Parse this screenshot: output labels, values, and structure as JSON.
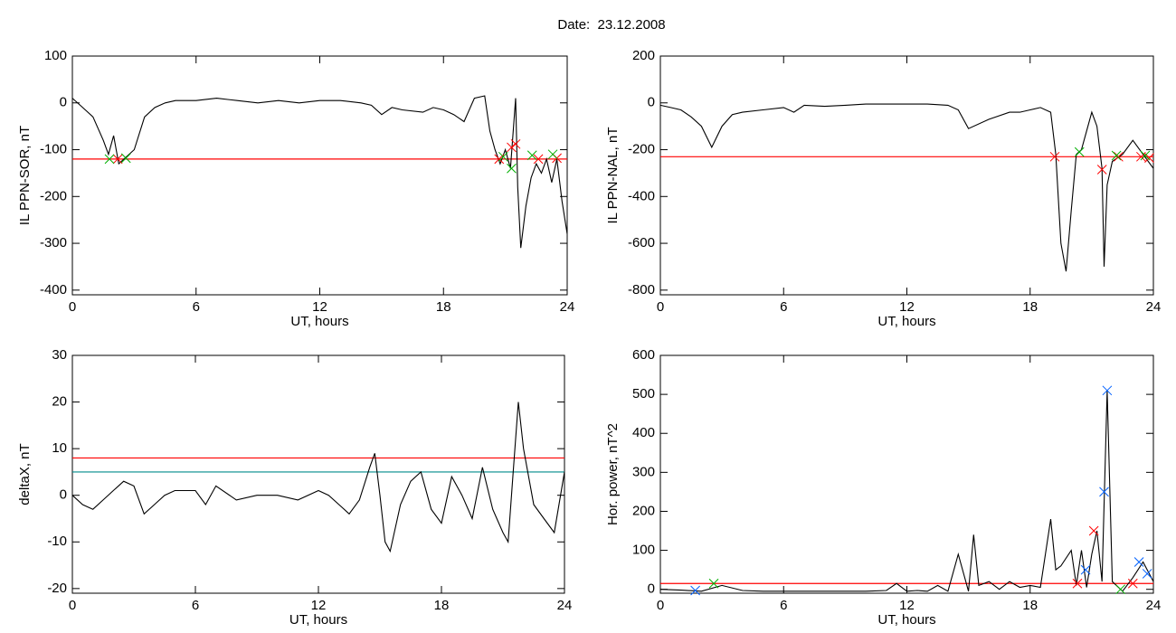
{
  "header": {
    "title": "Date:  23.12.2008"
  },
  "chart_data": [
    {
      "type": "line",
      "ylabel": "IL PPN-SOR, nT",
      "xlabel": "UT, hours",
      "xlim": [
        0,
        24
      ],
      "xticks": [
        0,
        6,
        12,
        18,
        24
      ],
      "ylim": [
        -410,
        100
      ],
      "yticks": [
        100,
        0,
        -100,
        -200,
        -300,
        -400
      ],
      "series": [
        {
          "color": "#000000",
          "x": [
            0,
            0.5,
            1,
            1.5,
            1.75,
            2,
            2.25,
            2.5,
            3,
            3.5,
            4,
            4.5,
            5,
            6,
            7,
            8,
            9,
            10,
            11,
            12,
            13,
            14,
            14.5,
            15,
            15.5,
            16,
            17,
            17.5,
            18,
            18.5,
            19,
            19.5,
            20,
            20.25,
            20.5,
            20.75,
            21,
            21.25,
            21.5,
            21.6,
            21.75,
            22,
            22.25,
            22.5,
            22.75,
            23,
            23.25,
            23.5,
            23.75,
            24
          ],
          "values": [
            10,
            -10,
            -30,
            -80,
            -110,
            -70,
            -130,
            -120,
            -100,
            -30,
            -10,
            0,
            5,
            5,
            10,
            5,
            0,
            5,
            0,
            5,
            5,
            0,
            -5,
            -25,
            -10,
            -15,
            -20,
            -10,
            -15,
            -25,
            -40,
            10,
            15,
            -60,
            -100,
            -130,
            -100,
            -140,
            10,
            -180,
            -310,
            -220,
            -160,
            -130,
            -150,
            -120,
            -170,
            -120,
            -210,
            -280
          ]
        }
      ],
      "hlines": [
        {
          "color": "#ff0000",
          "value": -120
        }
      ],
      "markers": [
        {
          "color": "#ff0000",
          "x": [
            2.2,
            20.7,
            21.3,
            21.5,
            22.6,
            23.5
          ],
          "values": [
            -120,
            -120,
            -95,
            -88,
            -120,
            -118
          ]
        },
        {
          "color": "#00b000",
          "x": [
            1.8,
            2.6,
            20.9,
            21.3,
            22.3,
            23.3
          ],
          "values": [
            -120,
            -118,
            -115,
            -140,
            -112,
            -110
          ]
        }
      ]
    },
    {
      "type": "line",
      "ylabel": "IL PPN-NAL, nT",
      "xlabel": "UT, hours",
      "xlim": [
        0,
        24
      ],
      "xticks": [
        0,
        6,
        12,
        18,
        24
      ],
      "ylim": [
        -820,
        200
      ],
      "yticks": [
        200,
        0,
        -200,
        -400,
        -600,
        -800
      ],
      "series": [
        {
          "color": "#000000",
          "x": [
            0,
            0.5,
            1,
            1.5,
            2,
            2.5,
            3,
            3.5,
            4,
            5,
            6,
            6.5,
            7,
            8,
            9,
            10,
            11,
            12,
            13,
            14,
            14.5,
            15,
            16,
            17,
            17.5,
            18,
            18.5,
            19,
            19.25,
            19.5,
            19.75,
            20,
            20.25,
            20.5,
            20.75,
            21,
            21.25,
            21.5,
            21.6,
            21.75,
            22,
            22.5,
            23,
            23.5,
            24
          ],
          "values": [
            -10,
            -20,
            -30,
            -60,
            -100,
            -190,
            -100,
            -50,
            -40,
            -30,
            -20,
            -40,
            -10,
            -15,
            -10,
            -5,
            -5,
            -5,
            -5,
            -10,
            -30,
            -110,
            -70,
            -40,
            -40,
            -30,
            -20,
            -40,
            -220,
            -600,
            -720,
            -460,
            -220,
            -200,
            -120,
            -40,
            -100,
            -280,
            -700,
            -350,
            -250,
            -220,
            -160,
            -220,
            -280
          ]
        }
      ],
      "hlines": [
        {
          "color": "#ff0000",
          "value": -230
        }
      ],
      "markers": [
        {
          "color": "#ff0000",
          "x": [
            19.2,
            21.5,
            22.3,
            23.4,
            23.8
          ],
          "values": [
            -230,
            -285,
            -230,
            -230,
            -235
          ]
        },
        {
          "color": "#00b000",
          "x": [
            20.4,
            22.2,
            23.6
          ],
          "values": [
            -210,
            -225,
            -225
          ]
        }
      ]
    },
    {
      "type": "line",
      "ylabel": "deltaX, nT",
      "xlabel": "UT, hours",
      "xlim": [
        0,
        24
      ],
      "xticks": [
        0,
        6,
        12,
        18,
        24
      ],
      "ylim": [
        -21,
        30
      ],
      "yticks": [
        30,
        20,
        10,
        0,
        -10,
        -20
      ],
      "series": [
        {
          "color": "#000000",
          "x": [
            0,
            0.5,
            1,
            1.5,
            2,
            2.5,
            3,
            3.5,
            4,
            4.5,
            5,
            6,
            6.5,
            7,
            8,
            9,
            10,
            11,
            12,
            12.5,
            13,
            13.5,
            14,
            14.5,
            14.75,
            15,
            15.25,
            15.5,
            16,
            16.5,
            17,
            17.5,
            18,
            18.5,
            19,
            19.5,
            20,
            20.5,
            21,
            21.25,
            21.5,
            21.75,
            22,
            22.5,
            23,
            23.5,
            24
          ],
          "values": [
            0,
            -2,
            -3,
            -1,
            1,
            3,
            2,
            -4,
            -2,
            0,
            1,
            1,
            -2,
            2,
            -1,
            0,
            0,
            -1,
            1,
            0,
            -2,
            -4,
            -1,
            6,
            9,
            0,
            -10,
            -12,
            -2,
            3,
            5,
            -3,
            -6,
            4,
            0,
            -5,
            6,
            -3,
            -8,
            -10,
            5,
            20,
            10,
            -2,
            -5,
            -8,
            5
          ]
        }
      ],
      "hlines": [
        {
          "color": "#ff0000",
          "value": 8
        },
        {
          "color": "#008b8b",
          "value": 5
        }
      ],
      "markers": []
    },
    {
      "type": "line",
      "ylabel": "Hor. power, nT^2",
      "xlabel": "UT, hours",
      "xlim": [
        0,
        24
      ],
      "xticks": [
        0,
        6,
        12,
        18,
        24
      ],
      "ylim": [
        -10,
        600
      ],
      "yticks": [
        600,
        500,
        400,
        300,
        200,
        100,
        0
      ],
      "series": [
        {
          "color": "#000000",
          "x": [
            0,
            1,
            2,
            3,
            4,
            5,
            6,
            7,
            8,
            9,
            10,
            11,
            11.5,
            12,
            12.5,
            13,
            13.5,
            14,
            14.5,
            15,
            15.25,
            15.5,
            16,
            16.5,
            17,
            17.5,
            18,
            18.5,
            19,
            19.25,
            19.5,
            20,
            20.25,
            20.5,
            20.75,
            21,
            21.25,
            21.5,
            21.75,
            22,
            22.5,
            23,
            23.5,
            24
          ],
          "values": [
            0,
            -2,
            -5,
            10,
            -3,
            -5,
            -5,
            -5,
            -5,
            -5,
            -5,
            -3,
            15,
            -5,
            -3,
            -5,
            10,
            -5,
            90,
            -5,
            140,
            10,
            20,
            0,
            20,
            5,
            10,
            5,
            180,
            50,
            60,
            100,
            10,
            100,
            5,
            90,
            150,
            20,
            510,
            20,
            -5,
            30,
            70,
            20
          ]
        }
      ],
      "hlines": [
        {
          "color": "#ff0000",
          "value": 15
        }
      ],
      "markers": [
        {
          "color": "#0060ff",
          "x": [
            1.7,
            21.6,
            21.75,
            20.7,
            23.3,
            23.7
          ],
          "values": [
            -3,
            250,
            510,
            50,
            70,
            40
          ]
        },
        {
          "color": "#ff0000",
          "x": [
            21.1,
            20.3,
            23.0
          ],
          "values": [
            150,
            15,
            15
          ]
        },
        {
          "color": "#00b000",
          "x": [
            2.6,
            22.4
          ],
          "values": [
            15,
            0
          ]
        }
      ]
    }
  ]
}
